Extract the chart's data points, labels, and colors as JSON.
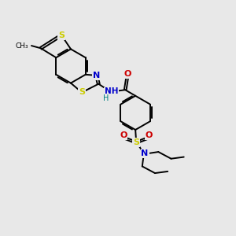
{
  "background_color": "#e8e8e8",
  "atom_colors": {
    "C": "#000000",
    "N": "#0000cc",
    "O": "#cc0000",
    "S": "#cccc00",
    "H": "#008080"
  },
  "bond_color": "#000000",
  "bond_lw": 1.4,
  "figsize": [
    3.0,
    3.0
  ],
  "dpi": 100,
  "xlim": [
    0,
    10
  ],
  "ylim": [
    0,
    10
  ]
}
